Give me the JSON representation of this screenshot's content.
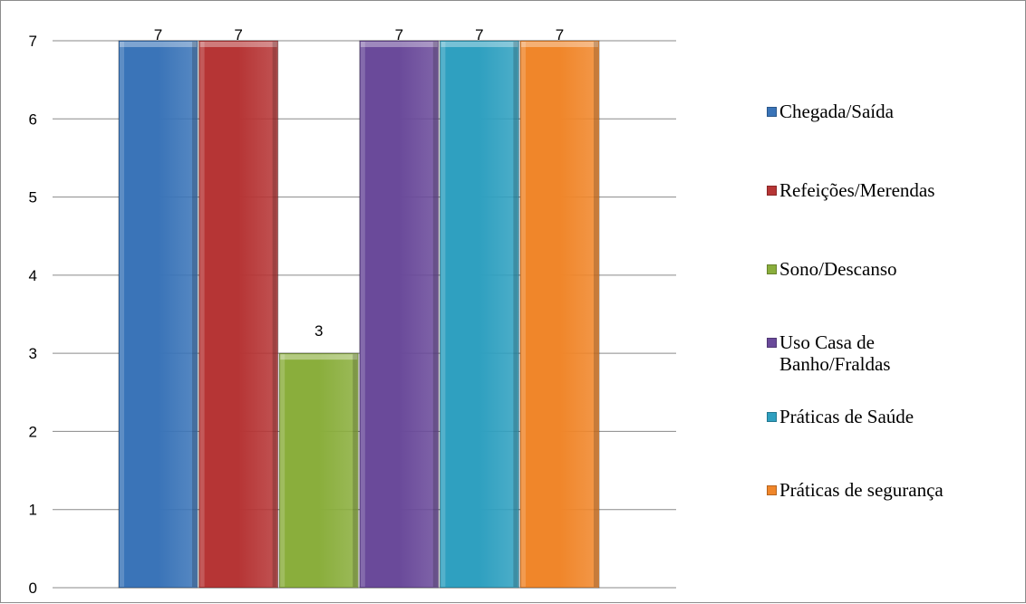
{
  "chart_data": {
    "type": "bar",
    "categories": [
      "Chegada/Saída",
      "Refeições/Merendas",
      "Sono/Descanso",
      "Uso Casa de Banho/Fraldas",
      "Práticas de Saúde",
      "Práticas de segurança"
    ],
    "values": [
      7,
      7,
      3,
      7,
      7,
      7
    ],
    "data_labels": [
      "7",
      "7",
      "3",
      "7",
      "7",
      "7"
    ],
    "colors": [
      "#3a74b8",
      "#b63535",
      "#8aae3c",
      "#6a4a9a",
      "#2fa0c0",
      "#f0862a"
    ],
    "ylim": [
      0,
      7
    ],
    "y_ticks": [
      "0",
      "1",
      "2",
      "3",
      "4",
      "5",
      "6",
      "7"
    ],
    "grid": true,
    "legend_position": "right",
    "title": "",
    "xlabel": "",
    "ylabel": ""
  },
  "legend": {
    "items": [
      {
        "label": "Chegada/Saída",
        "color": "#3a74b8"
      },
      {
        "label": "Refeições/Merendas",
        "color": "#b63535"
      },
      {
        "label": "Sono/Descanso",
        "color": "#8aae3c"
      },
      {
        "label": "Uso Casa de Banho/Fraldas",
        "color": "#6a4a9a"
      },
      {
        "label": "Práticas de Saúde",
        "color": "#2fa0c0"
      },
      {
        "label": "Práticas de segurança",
        "color": "#f0862a"
      }
    ]
  }
}
